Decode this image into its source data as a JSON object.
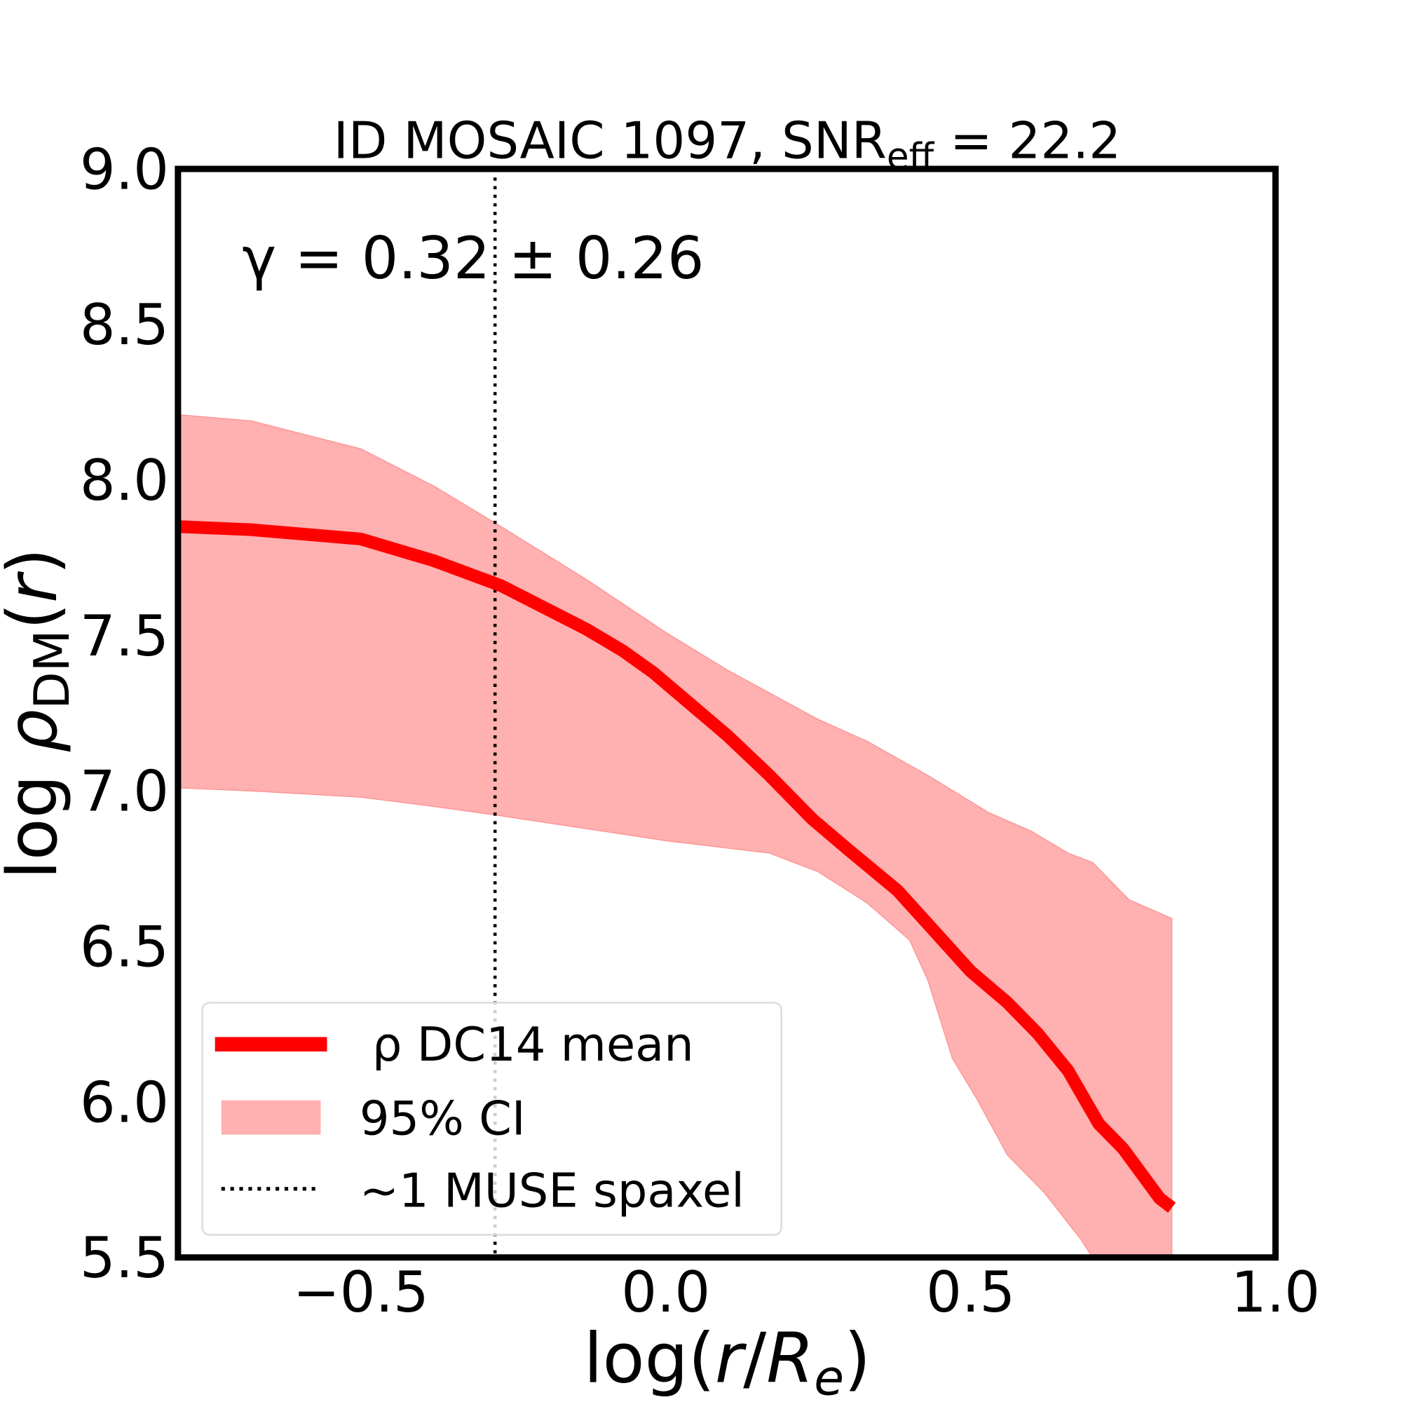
{
  "chart_data": {
    "type": "line",
    "title": "ID MOSAIC 1097, SNR",
    "title_subscript": "eff",
    "title_suffix": " = 22.2",
    "xlabel": "log(r/R_e)",
    "ylabel": "log ρ_DM(r)",
    "xlim": [
      -0.8,
      1.0
    ],
    "ylim": [
      5.5,
      9.0
    ],
    "xticks": [
      "−0.5",
      "0.0",
      "0.5",
      "1.0"
    ],
    "xtick_values": [
      -0.5,
      0.0,
      0.5,
      1.0
    ],
    "yticks": [
      "5.5",
      "6.0",
      "6.5",
      "7.0",
      "7.5",
      "8.0",
      "8.5",
      "9.0"
    ],
    "ytick_values": [
      5.5,
      6.0,
      6.5,
      7.0,
      7.5,
      8.0,
      8.5,
      9.0
    ],
    "grid": false,
    "annotation": "γ = 0.32 ± 0.26",
    "vline": {
      "x": -0.28,
      "style": "dotted",
      "color": "#000000"
    },
    "series": [
      {
        "name": "ρ DC14 mean",
        "color": "#ff0000",
        "x": [
          -0.8,
          -0.68,
          -0.5,
          -0.38,
          -0.27,
          -0.21,
          -0.13,
          -0.07,
          -0.02,
          0.04,
          0.1,
          0.17,
          0.24,
          0.3,
          0.38,
          0.44,
          0.5,
          0.56,
          0.61,
          0.66,
          0.71,
          0.75,
          0.81,
          0.83
        ],
        "y": [
          7.85,
          7.84,
          7.81,
          7.74,
          7.66,
          7.6,
          7.52,
          7.45,
          7.38,
          7.28,
          7.18,
          7.05,
          6.91,
          6.81,
          6.68,
          6.55,
          6.42,
          6.32,
          6.22,
          6.1,
          5.93,
          5.85,
          5.69,
          5.66
        ]
      }
    ],
    "band": {
      "name": "95% CI",
      "color": "#ffb0b0",
      "upper": {
        "x": [
          -0.8,
          -0.68,
          -0.5,
          -0.38,
          -0.27,
          -0.13,
          0.0,
          0.1,
          0.25,
          0.33,
          0.43,
          0.53,
          0.6,
          0.66,
          0.7,
          0.76,
          0.83
        ],
        "y": [
          8.21,
          8.19,
          8.1,
          7.98,
          7.85,
          7.68,
          7.51,
          7.39,
          7.23,
          7.16,
          7.05,
          6.93,
          6.87,
          6.8,
          6.77,
          6.65,
          6.59
        ]
      },
      "lower": {
        "x": [
          -0.8,
          -0.68,
          -0.5,
          -0.38,
          -0.27,
          0.0,
          0.17,
          0.25,
          0.33,
          0.4,
          0.43,
          0.47,
          0.51,
          0.56,
          0.62,
          0.68,
          0.7,
          0.83
        ],
        "y": [
          7.01,
          7.0,
          6.98,
          6.95,
          6.92,
          6.84,
          6.8,
          6.74,
          6.64,
          6.52,
          6.39,
          6.14,
          6.01,
          5.83,
          5.71,
          5.56,
          5.5,
          5.3
        ]
      }
    },
    "legend": {
      "placement": "lower-left",
      "entries": [
        "ρ DC14 mean",
        "95% CI",
        "~1 MUSE spaxel"
      ]
    }
  }
}
